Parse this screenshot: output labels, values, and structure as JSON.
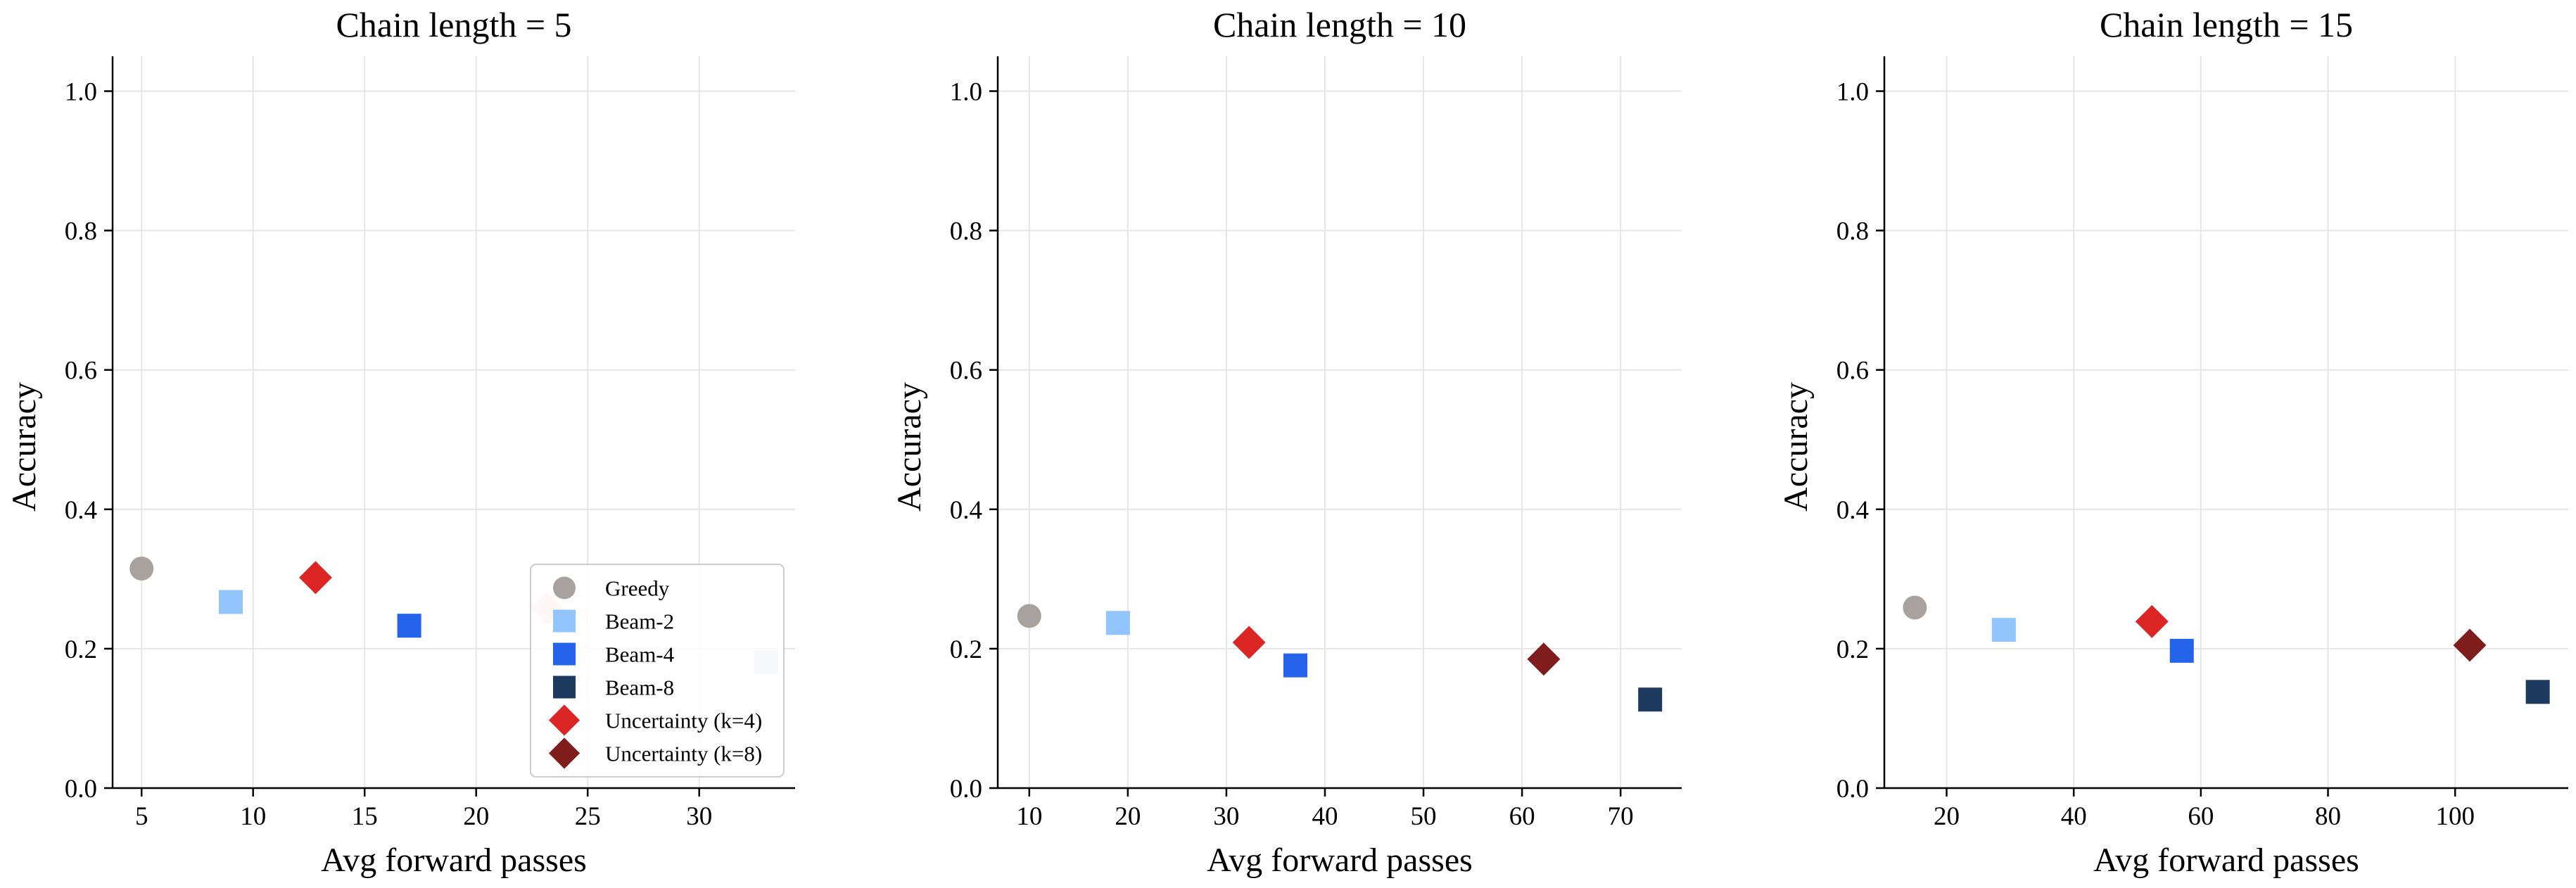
{
  "chart_data": [
    {
      "type": "scatter",
      "title": "Chain length = 5",
      "xlabel": "Avg forward passes",
      "ylabel": "Accuracy",
      "xlim": [
        3.7,
        34.3
      ],
      "ylim": [
        0.0,
        1.05
      ],
      "xticks": [
        5,
        10,
        15,
        20,
        25,
        30
      ],
      "yticks": [
        0.0,
        0.2,
        0.4,
        0.6,
        0.8,
        1.0
      ],
      "grid": true,
      "legend": {
        "show": true,
        "position": "lower-right"
      },
      "series": [
        {
          "name": "Greedy",
          "marker": "circle",
          "color": "#a8a29e",
          "x": 5,
          "y": 0.315
        },
        {
          "name": "Beam-2",
          "marker": "square",
          "color": "#93c5fd",
          "x": 9,
          "y": 0.267
        },
        {
          "name": "Beam-4",
          "marker": "square",
          "color": "#2563eb",
          "x": 17,
          "y": 0.233
        },
        {
          "name": "Beam-8",
          "marker": "square",
          "color": "#cbd5e1",
          "x": 33,
          "y": 0.181
        },
        {
          "name": "Uncertainty (k=4)",
          "marker": "diamond",
          "color": "#dc2626",
          "x": 12.8,
          "y": 0.302
        },
        {
          "name": "Uncertainty (k=8)",
          "marker": "diamond",
          "color": "#f0d0d0",
          "x": 23.2,
          "y": 0.258
        }
      ]
    },
    {
      "type": "scatter",
      "title": "Chain length = 10",
      "xlabel": "Avg forward passes",
      "ylabel": "Accuracy",
      "xlim": [
        6.8,
        76.2
      ],
      "ylim": [
        0.0,
        1.05
      ],
      "xticks": [
        10,
        20,
        30,
        40,
        50,
        60,
        70
      ],
      "yticks": [
        0.0,
        0.2,
        0.4,
        0.6,
        0.8,
        1.0
      ],
      "grid": true,
      "legend": {
        "show": false
      },
      "series": [
        {
          "name": "Greedy",
          "marker": "circle",
          "color": "#a8a29e",
          "x": 10,
          "y": 0.247
        },
        {
          "name": "Beam-2",
          "marker": "square",
          "color": "#93c5fd",
          "x": 19,
          "y": 0.237
        },
        {
          "name": "Beam-4",
          "marker": "square",
          "color": "#2563eb",
          "x": 37,
          "y": 0.176
        },
        {
          "name": "Beam-8",
          "marker": "square",
          "color": "#1e3a5f",
          "x": 73,
          "y": 0.127
        },
        {
          "name": "Uncertainty (k=4)",
          "marker": "diamond",
          "color": "#dc2626",
          "x": 32.3,
          "y": 0.209
        },
        {
          "name": "Uncertainty (k=8)",
          "marker": "diamond",
          "color": "#7f1d1d",
          "x": 62.2,
          "y": 0.185
        }
      ]
    },
    {
      "type": "scatter",
      "title": "Chain length = 15",
      "xlabel": "Avg forward passes",
      "ylabel": "Accuracy",
      "xlim": [
        10.2,
        117.8
      ],
      "ylim": [
        0.0,
        1.05
      ],
      "xticks": [
        20,
        40,
        60,
        80,
        100
      ],
      "yticks": [
        0.0,
        0.2,
        0.4,
        0.6,
        0.8,
        1.0
      ],
      "grid": true,
      "legend": {
        "show": false
      },
      "series": [
        {
          "name": "Greedy",
          "marker": "circle",
          "color": "#a8a29e",
          "x": 15,
          "y": 0.259
        },
        {
          "name": "Beam-2",
          "marker": "square",
          "color": "#93c5fd",
          "x": 29,
          "y": 0.227
        },
        {
          "name": "Beam-4",
          "marker": "square",
          "color": "#2563eb",
          "x": 57,
          "y": 0.197
        },
        {
          "name": "Beam-8",
          "marker": "square",
          "color": "#1e3a5f",
          "x": 113,
          "y": 0.138
        },
        {
          "name": "Uncertainty (k=4)",
          "marker": "diamond",
          "color": "#dc2626",
          "x": 52.3,
          "y": 0.239
        },
        {
          "name": "Uncertainty (k=8)",
          "marker": "diamond",
          "color": "#7f1d1d",
          "x": 102.3,
          "y": 0.205
        }
      ]
    }
  ],
  "legend_entries": [
    {
      "label": "Greedy",
      "marker": "circle",
      "color": "#a8a29e"
    },
    {
      "label": "Beam-2",
      "marker": "square",
      "color": "#93c5fd"
    },
    {
      "label": "Beam-4",
      "marker": "square",
      "color": "#2563eb"
    },
    {
      "label": "Beam-8",
      "marker": "square",
      "color": "#1e3a5f"
    },
    {
      "label": "Uncertainty (k=4)",
      "marker": "diamond",
      "color": "#dc2626"
    },
    {
      "label": "Uncertainty (k=8)",
      "marker": "diamond",
      "color": "#7f1d1d"
    }
  ]
}
